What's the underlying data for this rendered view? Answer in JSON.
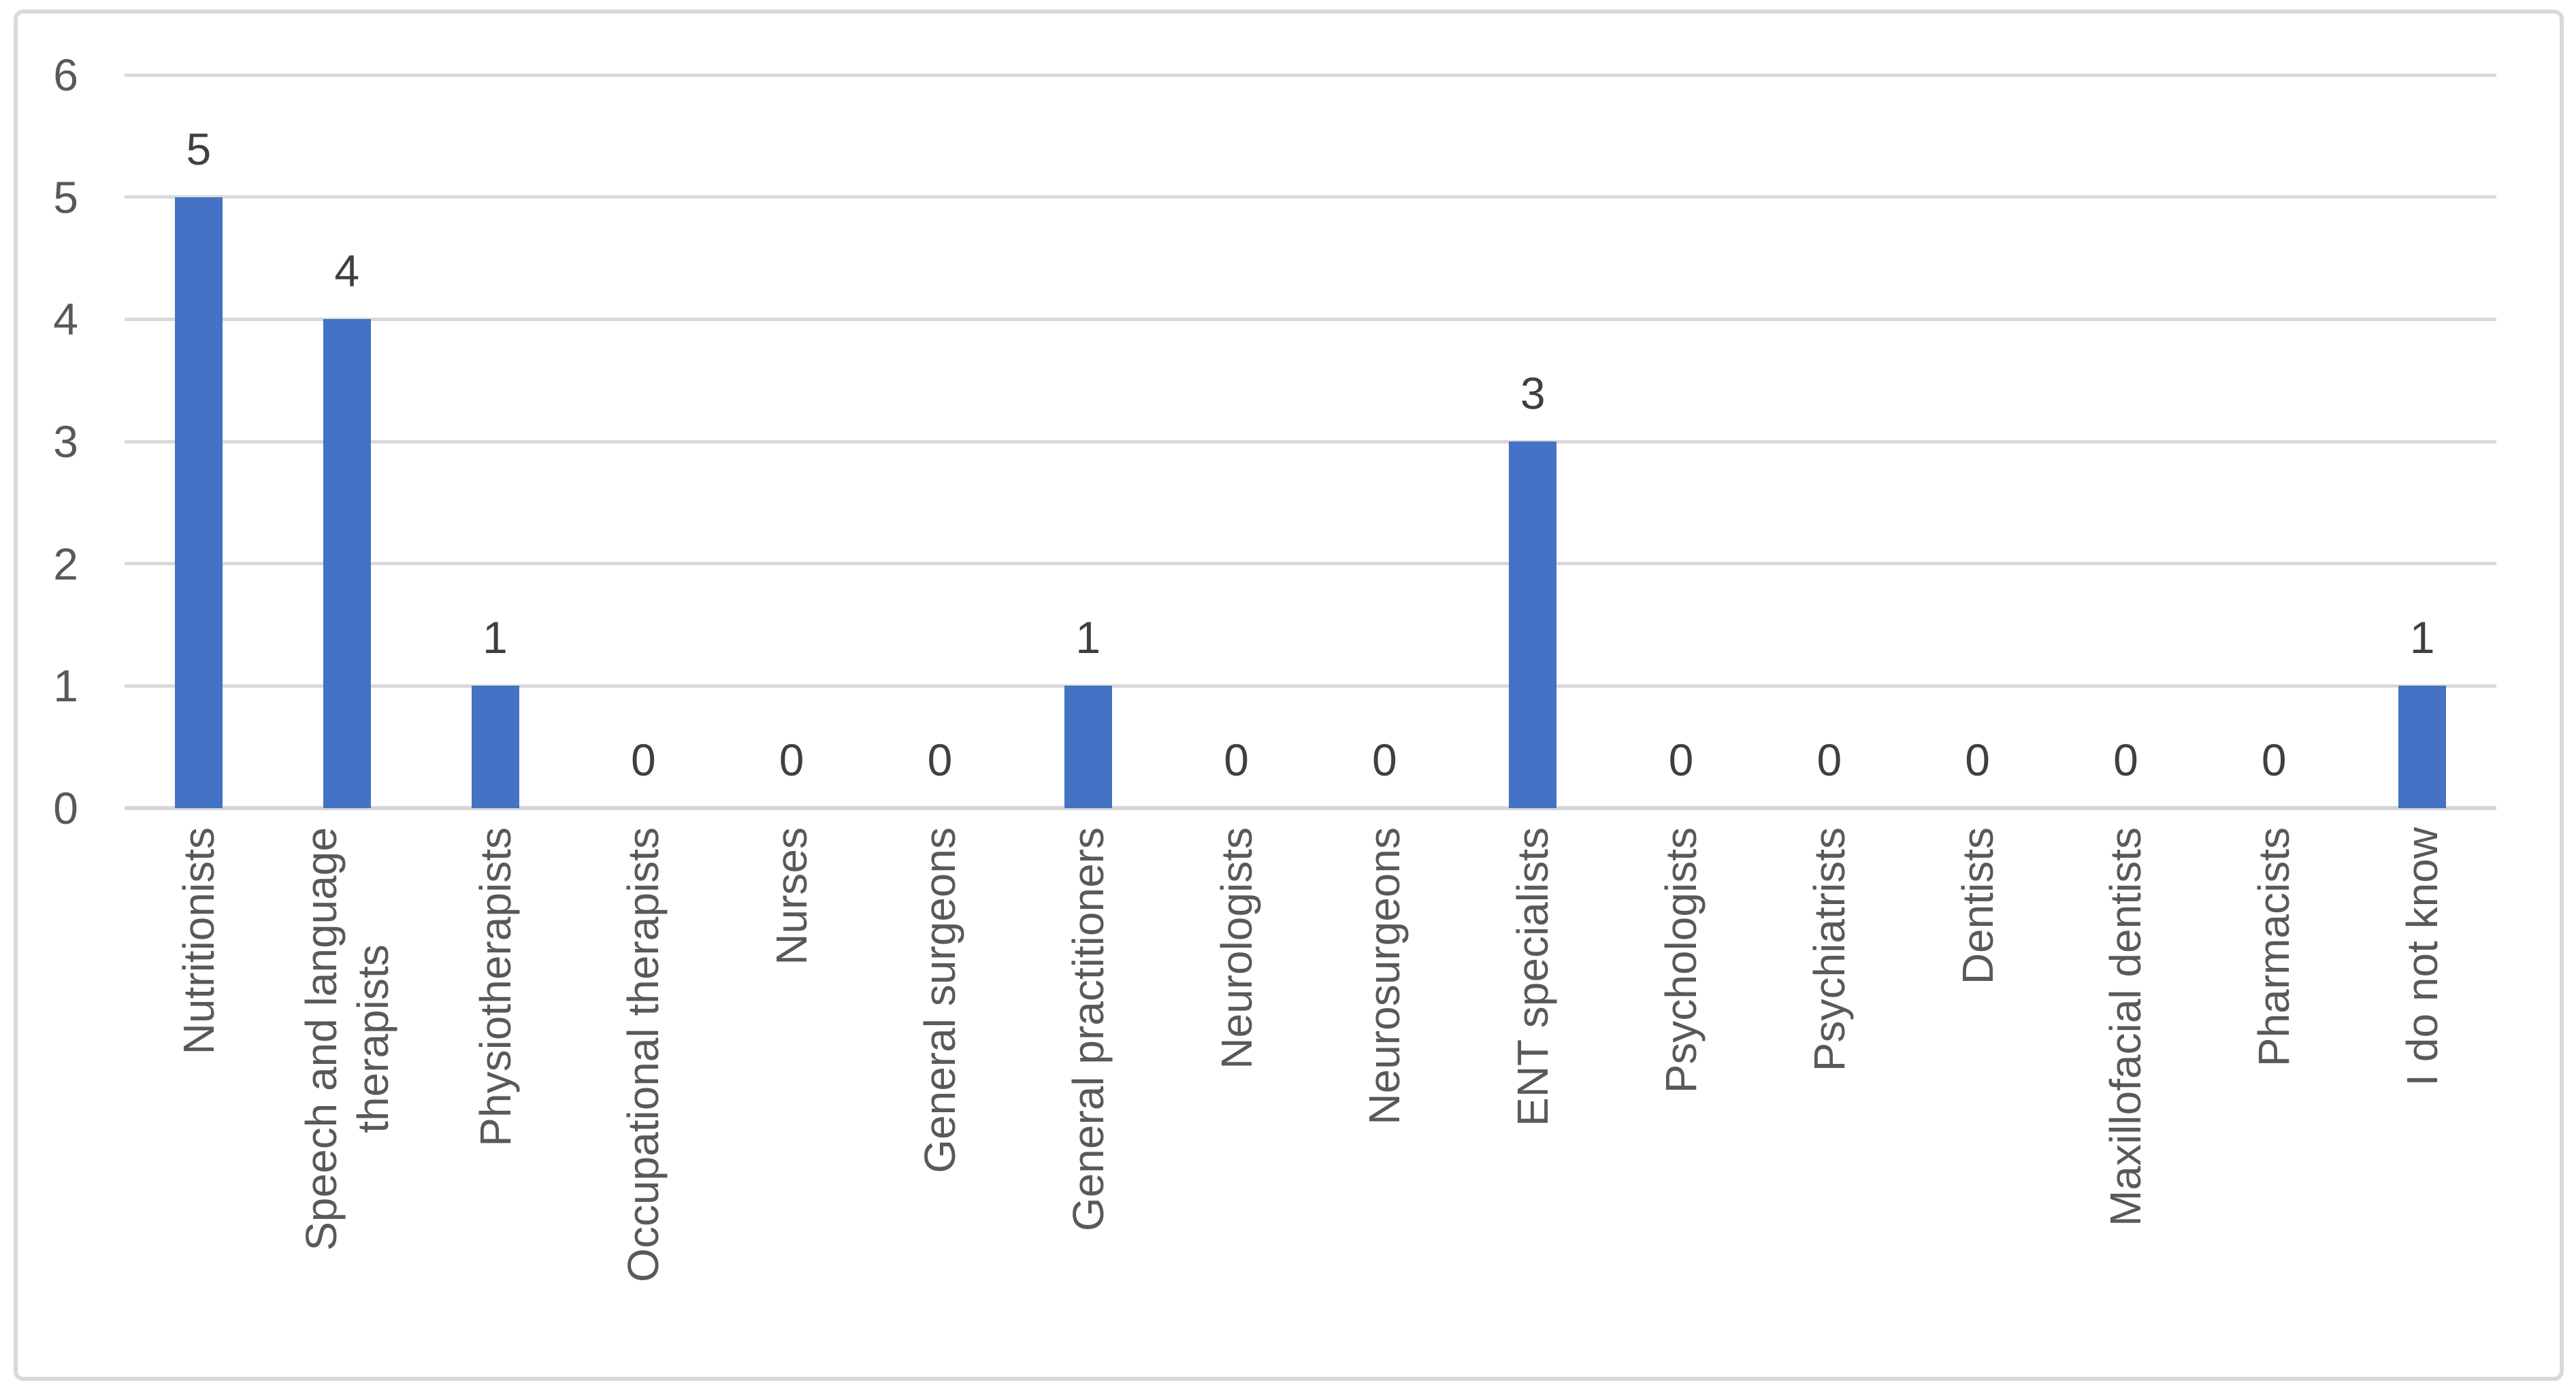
{
  "chart_data": {
    "type": "bar",
    "title": "",
    "xlabel": "",
    "ylabel": "",
    "categories": [
      "Nutritionists",
      "Speech and language therapists",
      "Physiotherapists",
      "Occupational therapists",
      "Nurses",
      "General surgeons",
      "General practitioners",
      "Neurologists",
      "Neurosurgeons",
      "ENT specialists",
      "Psychologists",
      "Psychiatrists",
      "Dentists",
      "Maxillofacial dentists",
      "Pharmacists",
      "I do not know"
    ],
    "category_display_lines": [
      [
        "Nutritionists"
      ],
      [
        "Speech and language",
        "therapists"
      ],
      [
        "Physiotherapists"
      ],
      [
        "Occupational therapists"
      ],
      [
        "Nurses"
      ],
      [
        "General surgeons"
      ],
      [
        "General practitioners"
      ],
      [
        "Neurologists"
      ],
      [
        "Neurosurgeons"
      ],
      [
        "ENT specialists"
      ],
      [
        "Psychologists"
      ],
      [
        "Psychiatrists"
      ],
      [
        "Dentists"
      ],
      [
        "Maxillofacial dentists"
      ],
      [
        "Pharmacists"
      ],
      [
        "I do not know"
      ]
    ],
    "values": [
      5,
      4,
      1,
      0,
      0,
      0,
      1,
      0,
      0,
      3,
      0,
      0,
      0,
      0,
      0,
      1
    ],
    "data_labels_visible": true,
    "ylim": [
      0,
      6
    ],
    "yticks": [
      0,
      1,
      2,
      3,
      4,
      5,
      6
    ],
    "grid": true,
    "legend": false,
    "colors": {
      "bar": "#4472C4",
      "gridline": "#D9D9D9",
      "axis_line": "#D6D6D6",
      "axis_text": "#595959",
      "data_label_text": "#3F3F3F",
      "frame_border": "#D9D9D9",
      "background": "#FFFFFF"
    }
  }
}
